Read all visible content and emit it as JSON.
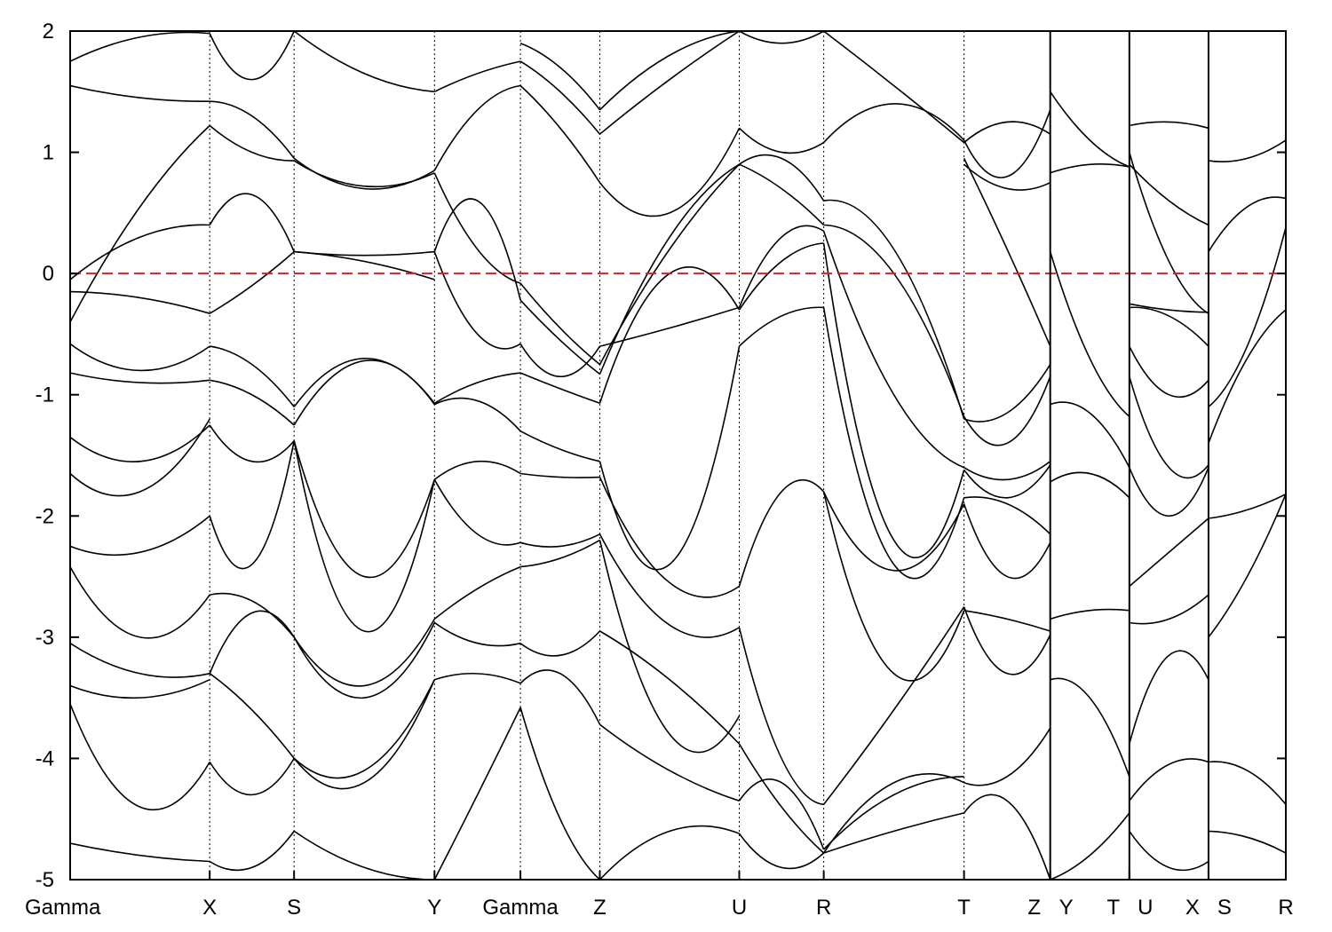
{
  "chart_data": {
    "type": "line",
    "title": "",
    "xlabel": "",
    "ylabel": "",
    "ylim": [
      -5,
      2
    ],
    "yticks": [
      2,
      1,
      0,
      -1,
      -2,
      -3,
      -4,
      -5
    ],
    "ytick_labels": [
      "2",
      "1",
      "0",
      "-1",
      "-2",
      "-3",
      "-4",
      "-5"
    ],
    "xlim": [
      0,
      1
    ],
    "kpoints": [
      {
        "label": "Gamma",
        "x": 0.0
      },
      {
        "label": "X",
        "x": 0.1148
      },
      {
        "label": "S",
        "x": 0.1842
      },
      {
        "label": "Y",
        "x": 0.2997
      },
      {
        "label": "Gamma",
        "x": 0.3704
      },
      {
        "label": "Z",
        "x": 0.4357
      },
      {
        "label": "U",
        "x": 0.5504
      },
      {
        "label": "R",
        "x": 0.6199
      },
      {
        "label": "T",
        "x": 0.7353
      },
      {
        "label": "Z",
        "x": 0.8062
      },
      {
        "label": "Y",
        "x": 0.8062
      },
      {
        "label": "T",
        "x": 0.8713
      },
      {
        "label": "U",
        "x": 0.8713
      },
      {
        "label": "X",
        "x": 0.9364
      },
      {
        "label": "S",
        "x": 0.9364
      },
      {
        "label": "R",
        "x": 1.0
      }
    ],
    "path_breaks": [
      0.8062,
      0.8713,
      0.9364
    ],
    "fermi_level": 0,
    "fermi_color": "#e41a1c",
    "band_color": "#000000",
    "segments": [
      {
        "from": 0.0,
        "to": 0.1148,
        "bands": [
          [
            1.75,
            1.95,
            1.98
          ],
          [
            1.55,
            1.45,
            1.42
          ],
          [
            -0.05,
            0.3,
            0.4
          ],
          [
            -0.15,
            -0.2,
            -0.33
          ],
          [
            -0.4,
            0.55,
            1.22
          ],
          [
            -0.58,
            -0.8,
            -0.6
          ],
          [
            -0.82,
            -0.9,
            -0.88
          ],
          [
            -1.35,
            -1.55,
            -1.25
          ],
          [
            -1.65,
            -1.8,
            -1.2
          ],
          [
            -2.25,
            -2.3,
            -2.0
          ],
          [
            -2.42,
            -3.0,
            -2.65
          ],
          [
            -3.05,
            -3.3,
            -3.3
          ],
          [
            -3.4,
            -3.5,
            -3.35
          ],
          [
            -3.55,
            -4.4,
            -4.03
          ],
          [
            -4.7,
            -4.8,
            -4.85
          ]
        ]
      },
      {
        "from": 0.1148,
        "to": 0.1842,
        "bands": [
          [
            1.98,
            1.6,
            2.0
          ],
          [
            1.42,
            1.3,
            0.95
          ],
          [
            1.22,
            1.0,
            0.93
          ],
          [
            0.4,
            0.65,
            0.18
          ],
          [
            -0.33,
            -0.1,
            0.18
          ],
          [
            -0.6,
            -0.75,
            -1.1
          ],
          [
            -0.88,
            -1.0,
            -1.25
          ],
          [
            -1.25,
            -1.55,
            -1.38
          ],
          [
            -2.0,
            -2.4,
            -1.38
          ],
          [
            -2.65,
            -2.7,
            -3.0
          ],
          [
            -3.3,
            -2.8,
            -3.0
          ],
          [
            -3.3,
            -3.6,
            -4.0
          ],
          [
            -4.03,
            -4.3,
            -4.0
          ],
          [
            -4.85,
            -4.9,
            -4.6
          ]
        ]
      },
      {
        "from": 0.1842,
        "to": 0.2997,
        "bands": [
          [
            2.0,
            1.65,
            1.5
          ],
          [
            0.95,
            0.7,
            0.85
          ],
          [
            0.93,
            0.72,
            0.83
          ],
          [
            0.18,
            0.1,
            -0.05
          ],
          [
            0.18,
            0.15,
            0.18
          ],
          [
            -1.1,
            -0.7,
            -1.07
          ],
          [
            -1.25,
            -0.72,
            -1.08
          ],
          [
            -1.38,
            -2.5,
            -1.7
          ],
          [
            -1.38,
            -2.95,
            -1.7
          ],
          [
            -3.0,
            -3.4,
            -2.85
          ],
          [
            -3.0,
            -3.5,
            -2.88
          ],
          [
            -4.0,
            -4.1,
            -3.35
          ],
          [
            -4.0,
            -4.2,
            -3.35
          ],
          [
            -4.6,
            -4.9,
            -5.0
          ]
        ]
      },
      {
        "from": 0.2997,
        "to": 0.3704,
        "bands": [
          [
            1.5,
            1.65,
            1.75
          ],
          [
            0.85,
            1.35,
            1.55
          ],
          [
            0.18,
            0.6,
            -0.22
          ],
          [
            0.83,
            0.2,
            -0.08
          ],
          [
            0.18,
            -0.5,
            -0.58
          ],
          [
            -1.07,
            -0.9,
            -0.82
          ],
          [
            -1.08,
            -1.05,
            -1.3
          ],
          [
            -1.7,
            -1.55,
            -1.65
          ],
          [
            -1.7,
            -2.15,
            -2.22
          ],
          [
            -2.85,
            -2.6,
            -2.42
          ],
          [
            -2.88,
            -3.05,
            -3.05
          ],
          [
            -3.35,
            -3.3,
            -3.38
          ],
          [
            -5.0,
            -4.3,
            -3.58
          ]
        ]
      },
      {
        "from": 0.3704,
        "to": 0.4357,
        "bands": [
          [
            1.9,
            1.7,
            1.35
          ],
          [
            1.75,
            1.5,
            1.15
          ],
          [
            1.55,
            1.2,
            0.75
          ],
          [
            -0.08,
            -0.45,
            -0.75
          ],
          [
            -0.22,
            -0.55,
            -0.83
          ],
          [
            -0.58,
            -0.85,
            -0.6
          ],
          [
            -0.82,
            -0.95,
            -1.07
          ],
          [
            -1.3,
            -1.45,
            -1.55
          ],
          [
            -1.65,
            -1.68,
            -1.68
          ],
          [
            -2.22,
            -2.25,
            -2.15
          ],
          [
            -2.42,
            -2.35,
            -2.2
          ],
          [
            -3.05,
            -3.15,
            -2.95
          ],
          [
            -3.38,
            -3.3,
            -3.72
          ],
          [
            -3.58,
            -4.5,
            -5.0
          ]
        ]
      },
      {
        "from": 0.4357,
        "to": 0.5504,
        "bands": [
          [
            1.35,
            1.8,
            2.0
          ],
          [
            1.15,
            1.6,
            2.0
          ],
          [
            0.75,
            0.5,
            1.2
          ],
          [
            -0.75,
            0.2,
            0.9
          ],
          [
            -0.83,
            0.3,
            0.9
          ],
          [
            -0.6,
            -0.45,
            -0.28
          ],
          [
            -1.07,
            0.0,
            -0.3
          ],
          [
            -1.55,
            -2.4,
            -0.6
          ],
          [
            -1.68,
            -2.55,
            -2.58
          ],
          [
            -2.15,
            -2.9,
            -2.92
          ],
          [
            -2.2,
            -3.8,
            -3.65
          ],
          [
            -2.95,
            -3.35,
            -3.88
          ],
          [
            -3.72,
            -4.1,
            -4.35
          ],
          [
            -5.0,
            -4.6,
            -4.62
          ]
        ]
      },
      {
        "from": 0.5504,
        "to": 0.6199,
        "bands": [
          [
            2.0,
            1.9,
            2.0
          ],
          [
            1.2,
            1.0,
            1.08
          ],
          [
            0.9,
            0.95,
            0.6
          ],
          [
            0.9,
            0.7,
            0.4
          ],
          [
            -0.28,
            0.3,
            0.35
          ],
          [
            -0.3,
            0.1,
            0.25
          ],
          [
            -0.6,
            -0.35,
            -0.28
          ],
          [
            -2.58,
            -1.8,
            -1.8
          ],
          [
            -2.92,
            -4.0,
            -4.38
          ],
          [
            -3.88,
            -4.4,
            -4.78
          ],
          [
            -4.35,
            -4.2,
            -4.75
          ],
          [
            -4.62,
            -4.9,
            -4.78
          ]
        ]
      },
      {
        "from": 0.6199,
        "to": 0.7353,
        "bands": [
          [
            2.0,
            1.55,
            1.08
          ],
          [
            1.08,
            1.4,
            1.1
          ],
          [
            0.6,
            0.2,
            -1.2
          ],
          [
            0.4,
            0.0,
            -1.18
          ],
          [
            0.35,
            -1.0,
            -1.6
          ],
          [
            0.25,
            -2.2,
            -1.62
          ],
          [
            -0.28,
            -2.4,
            -1.85
          ],
          [
            -1.8,
            -2.45,
            -1.9
          ],
          [
            -1.8,
            -3.3,
            -2.78
          ],
          [
            -4.38,
            -3.6,
            -2.75
          ],
          [
            -4.78,
            -4.2,
            -4.2
          ],
          [
            -4.75,
            -4.3,
            -4.15
          ],
          [
            -4.78,
            -4.6,
            -4.45
          ]
        ]
      },
      {
        "from": 0.7353,
        "to": 0.8062,
        "bands": [
          [
            1.08,
            1.25,
            1.15
          ],
          [
            1.1,
            0.8,
            1.35
          ],
          [
            0.9,
            0.7,
            0.75
          ],
          [
            0.95,
            0.2,
            -0.6
          ],
          [
            -1.2,
            -1.15,
            -0.75
          ],
          [
            -1.18,
            -1.4,
            -0.85
          ],
          [
            -1.6,
            -1.7,
            -1.55
          ],
          [
            -1.62,
            -1.85,
            -1.58
          ],
          [
            -1.85,
            -1.9,
            -2.15
          ],
          [
            -1.9,
            -2.5,
            -2.22
          ],
          [
            -2.78,
            -2.85,
            -2.95
          ],
          [
            -2.75,
            -3.3,
            -2.98
          ],
          [
            -4.2,
            -4.15,
            -3.75
          ],
          [
            -4.45,
            -4.35,
            -5.0
          ]
        ]
      },
      {
        "from": 0.8062,
        "to": 0.8713,
        "bands": [
          [
            1.5,
            1.1,
            0.88
          ],
          [
            0.83,
            0.9,
            0.88
          ],
          [
            0.18,
            -0.7,
            -1.18
          ],
          [
            -1.08,
            -1.15,
            -1.6
          ],
          [
            -1.72,
            -1.65,
            -1.85
          ],
          [
            -2.85,
            -2.78,
            -2.78
          ],
          [
            -3.35,
            -3.5,
            -4.15
          ],
          [
            -5.0,
            -4.8,
            -4.45
          ]
        ]
      },
      {
        "from": 0.8713,
        "to": 0.9364,
        "bands": [
          [
            1.22,
            1.25,
            1.2
          ],
          [
            0.9,
            0.6,
            0.4
          ],
          [
            1.0,
            0.1,
            -0.33
          ],
          [
            -0.25,
            -0.3,
            -0.32
          ],
          [
            -0.28,
            -0.35,
            -0.6
          ],
          [
            -0.6,
            -1.0,
            -0.88
          ],
          [
            -0.85,
            -1.6,
            -1.58
          ],
          [
            -1.6,
            -2.0,
            -1.6
          ],
          [
            -2.58,
            -2.3,
            -2.02
          ],
          [
            -2.88,
            -2.85,
            -2.65
          ],
          [
            -3.88,
            -3.15,
            -3.35
          ],
          [
            -4.35,
            -4.05,
            -4.03
          ],
          [
            -4.6,
            -4.9,
            -4.85
          ]
        ]
      },
      {
        "from": 0.9364,
        "to": 1.0,
        "bands": [
          [
            0.93,
            0.95,
            1.1
          ],
          [
            0.18,
            0.55,
            0.62
          ],
          [
            -1.1,
            -0.6,
            0.38
          ],
          [
            -1.4,
            -0.7,
            -0.3
          ],
          [
            -2.02,
            -1.95,
            -1.82
          ],
          [
            -3.0,
            -2.5,
            -1.82
          ],
          [
            -4.03,
            -4.1,
            -4.38
          ],
          [
            -4.6,
            -4.65,
            -4.78
          ]
        ]
      }
    ]
  }
}
